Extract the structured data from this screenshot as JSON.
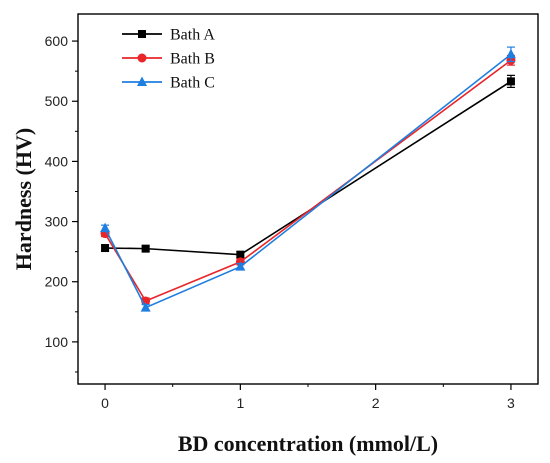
{
  "chart_data": {
    "type": "line",
    "xlabel": "BD concentration (mmol/L)",
    "ylabel": "Hardness (HV)",
    "xlim": [
      -0.2,
      3.2
    ],
    "ylim": [
      30,
      645
    ],
    "x_ticks": [
      0,
      1,
      2,
      3
    ],
    "y_ticks": [
      100,
      200,
      300,
      400,
      500,
      600
    ],
    "grid": false,
    "legend_position": "top-left",
    "x": [
      0,
      0.3,
      1,
      3
    ],
    "series": [
      {
        "name": "Bath A",
        "values": [
          256,
          255,
          245,
          533
        ],
        "errors": [
          5,
          4,
          5,
          10
        ],
        "color": "#000000",
        "marker": "square"
      },
      {
        "name": "Bath B",
        "values": [
          280,
          168,
          233,
          568
        ],
        "errors": [
          5,
          5,
          5,
          8
        ],
        "color": "#e8262a",
        "marker": "circle"
      },
      {
        "name": "Bath C",
        "values": [
          289,
          157,
          225,
          578
        ],
        "errors": [
          5,
          5,
          5,
          12
        ],
        "color": "#1e7fe0",
        "marker": "triangle"
      }
    ]
  }
}
